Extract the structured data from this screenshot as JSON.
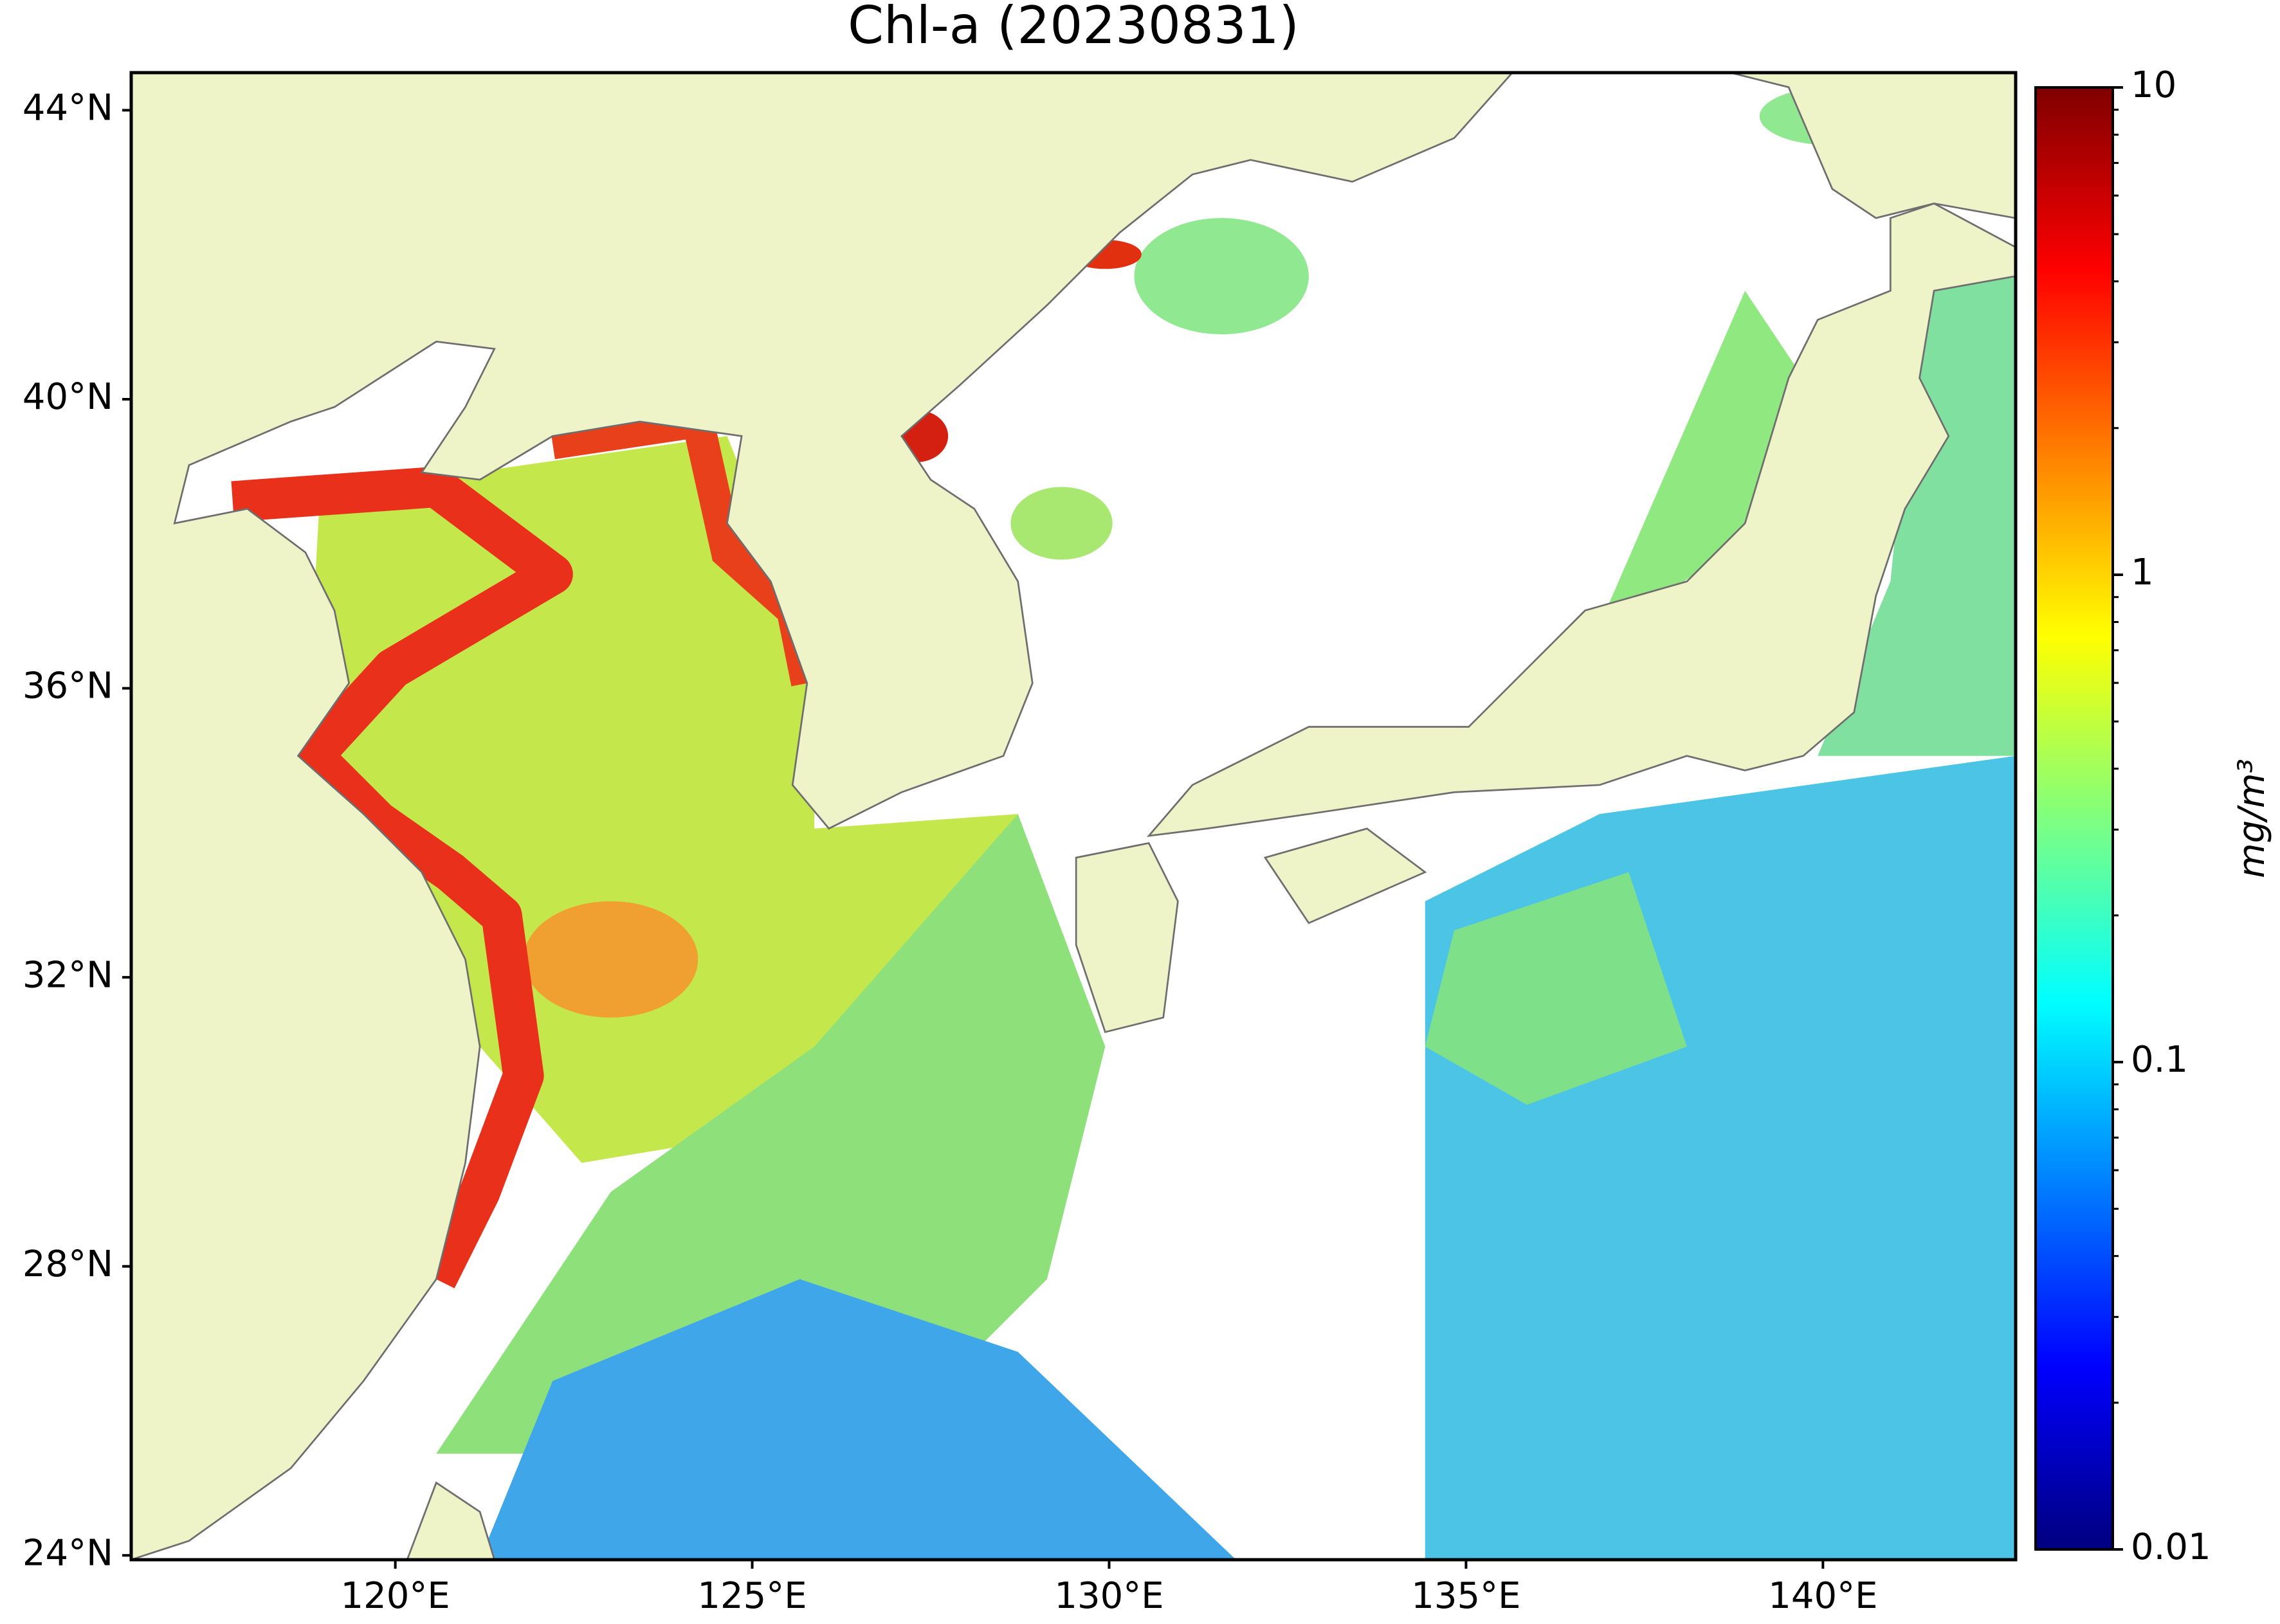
{
  "chart_data": {
    "type": "map",
    "title": "Chl-a (20230831)",
    "xlim": [
      116.3,
      142.7
    ],
    "ylim": [
      23.94,
      44.52
    ],
    "xticks": [
      {
        "value": 120,
        "label": "120°E"
      },
      {
        "value": 125,
        "label": "125°E"
      },
      {
        "value": 130,
        "label": "130°E"
      },
      {
        "value": 135,
        "label": "135°E"
      },
      {
        "value": 140,
        "label": "140°E"
      }
    ],
    "yticks": [
      {
        "value": 24,
        "label": "24°N"
      },
      {
        "value": 28,
        "label": "28°N"
      },
      {
        "value": 32,
        "label": "32°N"
      },
      {
        "value": 36,
        "label": "36°N"
      },
      {
        "value": 40,
        "label": "40°N"
      },
      {
        "value": 44,
        "label": "44°N"
      }
    ],
    "land_color": "#eff3c8",
    "coast_color": "#6e6e6e",
    "colorbar": {
      "label": "mg/m³",
      "scale": "log",
      "lim": [
        0.01,
        10
      ],
      "ticks": [
        0.01,
        0.1,
        1,
        10
      ],
      "minor_ticks": [
        0.02,
        0.03,
        0.04,
        0.05,
        0.06,
        0.07,
        0.08,
        0.09,
        0.2,
        0.3,
        0.4,
        0.5,
        0.6,
        0.7,
        0.8,
        0.9,
        2,
        3,
        4,
        5,
        6,
        7,
        8,
        9
      ],
      "colors": [
        "#00007f",
        "#0000ff",
        "#007fff",
        "#00ffff",
        "#7fff7f",
        "#ffff00",
        "#ff7f00",
        "#ff0000",
        "#7f0000"
      ]
    }
  }
}
